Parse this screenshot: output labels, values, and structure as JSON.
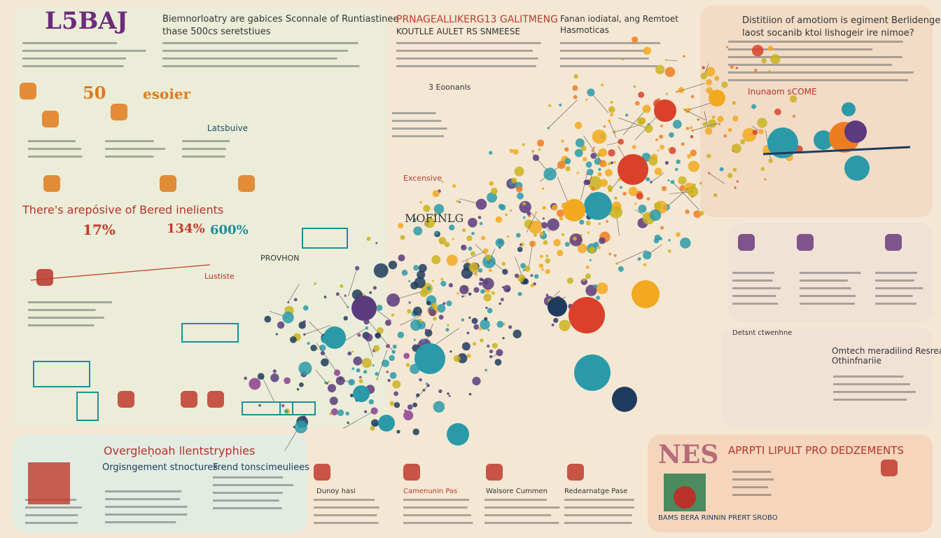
{
  "logo": "L5BAJ",
  "top_left": {
    "heading": "Biemnorloatry are gabices Sconnale of Runtiastinee",
    "subheading": "thase 500cs seretstiues",
    "stat_a": "50",
    "stat_b": "esoier",
    "label": "Latsbuive"
  },
  "left_mid": {
    "title": "There's arepósive of Bered inelients",
    "stats": [
      "17%",
      "134%",
      "600%"
    ],
    "tag": "Lustiste"
  },
  "center": {
    "title": "PRNAGEALLIKERG13 GALITMENG",
    "subtitle": "KOUTLLE AULET RS SNMEESE",
    "badge": "3 Eoonanls",
    "note": "Excensive",
    "label": "MOFINLG",
    "box": "PROVHON"
  },
  "top_mid_right": {
    "title": "Fanan iodiatal, ang Remtoet",
    "subtitle": "Hasmoticas"
  },
  "top_right": {
    "title": "Distitiion of amotiom is egiment Berlidenge and",
    "subtitle": "laost socanib ktoi lishogeir ire nimoe?",
    "label": "Inunaom sCOME"
  },
  "right_lower": {
    "title": "Omtech meradilind Resreants",
    "subtitle": "Othinfnariie",
    "caption": "Detsnt ctwenhne"
  },
  "bottom_left": {
    "title": "Overgleḥoah llentstryphies",
    "col1": "Orgisngement stnoctures",
    "col2": "Frend tonscimeuliees"
  },
  "bottom_mid": {
    "captions": [
      "Dunoy hasi",
      "Camenunin Pas",
      "Walsore Cummen",
      "Redearnatge Pase"
    ]
  },
  "bottom_right": {
    "badge": "NES",
    "title": "APRPTI LIPULT PRO DEDZEMENTS",
    "caption": "BAMS BERA RINNIN PRERT SROBO"
  }
}
